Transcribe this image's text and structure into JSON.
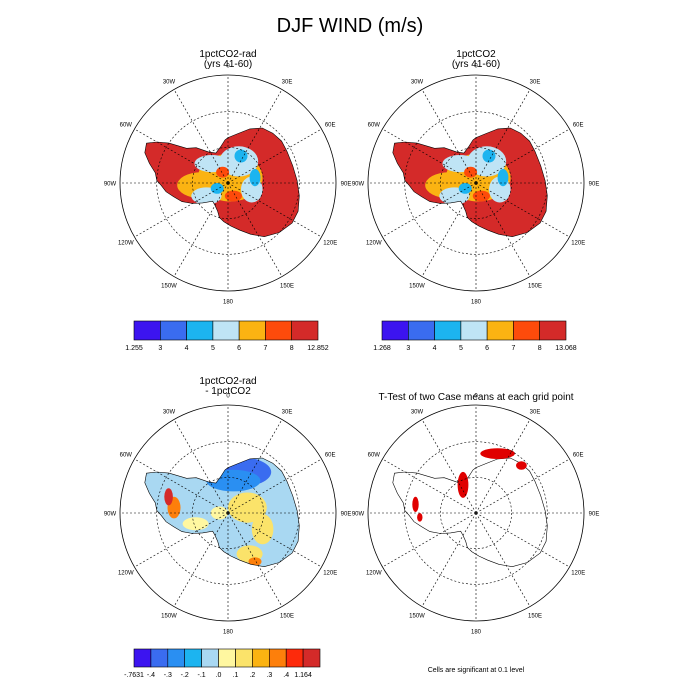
{
  "figure_title": "DJF WIND (m/s)",
  "lon_labels": [
    "0",
    "30E",
    "60E",
    "90E",
    "120E",
    "150E",
    "180",
    "150W",
    "120W",
    "90W",
    "60W",
    "30W"
  ],
  "footnote": "Cells are significant at 0.1 level",
  "chart_data": [
    {
      "type": "heatmap",
      "projection": "south-polar-stereographic",
      "title_line1": "1pctCO2-rad",
      "title_line2": "(yrs 41-60)",
      "units": "m/s",
      "colorbar": {
        "colors": [
          "#3c14f0",
          "#3a6cf0",
          "#1cb4f0",
          "#bfe4f5",
          "#fbb312",
          "#fd4b0b",
          "#d42a29"
        ],
        "tick_labels": [
          "1.255",
          "3",
          "4",
          "5",
          "6",
          "7",
          "8",
          "12.852"
        ],
        "min": 1.255,
        "max": 12.852
      }
    },
    {
      "type": "heatmap",
      "projection": "south-polar-stereographic",
      "title_line1": "1pctCO2",
      "title_line2": "(yrs 41-60)",
      "units": "m/s",
      "colorbar": {
        "colors": [
          "#3c14f0",
          "#3a6cf0",
          "#1cb4f0",
          "#bfe4f5",
          "#fbb312",
          "#fd4b0b",
          "#d42a29"
        ],
        "tick_labels": [
          "1.268",
          "3",
          "4",
          "5",
          "6",
          "7",
          "8",
          "13.068"
        ],
        "min": 1.268,
        "max": 13.068
      }
    },
    {
      "type": "heatmap",
      "projection": "south-polar-stereographic",
      "title_line1": "1pctCO2-rad",
      "title_line2": "- 1pctCO2",
      "units": "m/s",
      "colorbar": {
        "colors": [
          "#3c14f0",
          "#3a6cf0",
          "#2a8ff2",
          "#1cb4f0",
          "#a9d8f2",
          "#fff7a0",
          "#fbe36a",
          "#fbb312",
          "#fd7f0b",
          "#fd2a0b",
          "#d42a29"
        ],
        "tick_labels": [
          "-.7631",
          "-.4",
          "-.3",
          "-.2",
          "-.1",
          ".0",
          ".1",
          ".2",
          ".3",
          ".4",
          "1.164"
        ],
        "min": -0.7631,
        "max": 1.164
      }
    },
    {
      "type": "heatmap",
      "projection": "south-polar-stereographic",
      "title_line1": "T-Test of two Case means at each grid point",
      "title_line2": "",
      "significance_color": "#e00000"
    }
  ],
  "colors": {
    "land_outline": "#000000",
    "grid": "#000000",
    "significant": "#e00000"
  }
}
